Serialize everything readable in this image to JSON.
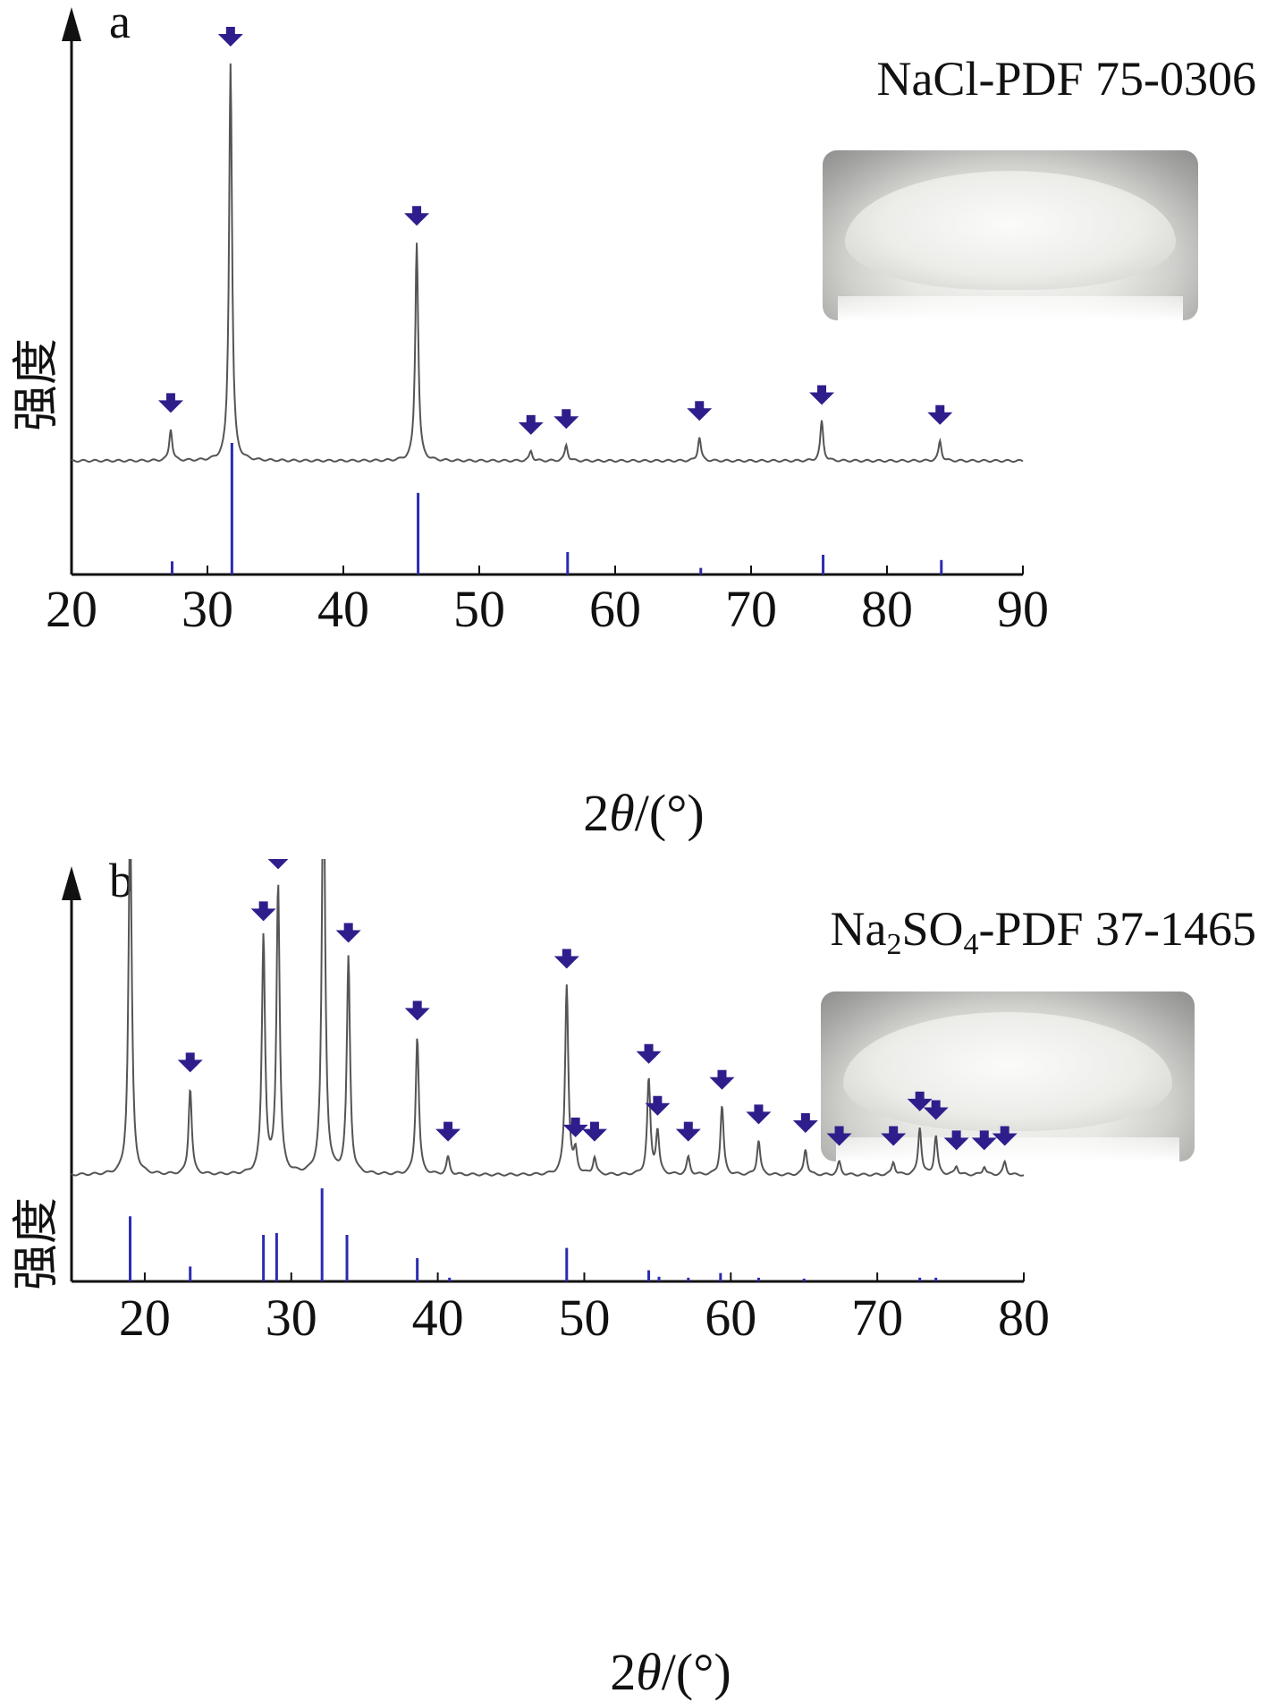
{
  "figure": {
    "panel_a_letter": "a",
    "panel_b_letter": "b",
    "y_axis_label": "强度",
    "x_axis_label_prefix": "2",
    "x_axis_label_theta": "θ",
    "x_axis_label_suffix": "/(°)"
  },
  "colors": {
    "pattern": "#555555",
    "reference": "#2b2bb0",
    "marker": "#2e1e8c",
    "axis": "#111111"
  },
  "chart_data": [
    {
      "type": "line",
      "panel": "a",
      "pdf_label": "NaCl-PDF 75-0306",
      "xlabel": "2θ/(°)",
      "ylabel": "强度",
      "xlim": [
        20,
        90
      ],
      "xticks": [
        20,
        30,
        40,
        50,
        60,
        70,
        80,
        90
      ],
      "xtick_labels": [
        "20",
        "30",
        "40",
        "50",
        "60",
        "70",
        "80",
        "90"
      ],
      "peaks": [
        {
          "x": 27.3,
          "y": 8
        },
        {
          "x": 31.7,
          "y": 100
        },
        {
          "x": 45.4,
          "y": 55
        },
        {
          "x": 53.8,
          "y": 2.5
        },
        {
          "x": 56.4,
          "y": 4
        },
        {
          "x": 66.2,
          "y": 6
        },
        {
          "x": 75.2,
          "y": 10
        },
        {
          "x": 83.9,
          "y": 5
        }
      ],
      "reference_lines": [
        {
          "x": 27.4,
          "y": 10
        },
        {
          "x": 31.8,
          "y": 100
        },
        {
          "x": 45.5,
          "y": 62
        },
        {
          "x": 56.5,
          "y": 17
        },
        {
          "x": 66.3,
          "y": 5
        },
        {
          "x": 75.3,
          "y": 15
        },
        {
          "x": 84.0,
          "y": 11
        }
      ]
    },
    {
      "type": "line",
      "panel": "b",
      "pdf_label": "Na2SO4-PDF 37-1465",
      "xlabel": "2θ/(°)",
      "ylabel": "强度",
      "xlim": [
        15,
        80
      ],
      "xticks": [
        20,
        30,
        40,
        50,
        60,
        70,
        80
      ],
      "xtick_labels": [
        "20",
        "30",
        "40",
        "50",
        "60",
        "70",
        "80"
      ],
      "peaks": [
        {
          "x": 19.0,
          "y": 85
        },
        {
          "x": 23.1,
          "y": 20
        },
        {
          "x": 28.1,
          "y": 55
        },
        {
          "x": 29.1,
          "y": 67
        },
        {
          "x": 32.2,
          "y": 100
        },
        {
          "x": 33.9,
          "y": 50
        },
        {
          "x": 38.6,
          "y": 32
        },
        {
          "x": 40.7,
          "y": 4
        },
        {
          "x": 48.8,
          "y": 44
        },
        {
          "x": 49.4,
          "y": 5
        },
        {
          "x": 50.7,
          "y": 4
        },
        {
          "x": 54.4,
          "y": 22
        },
        {
          "x": 55.0,
          "y": 10
        },
        {
          "x": 57.1,
          "y": 4
        },
        {
          "x": 59.4,
          "y": 16
        },
        {
          "x": 61.9,
          "y": 8
        },
        {
          "x": 65.1,
          "y": 6
        },
        {
          "x": 67.4,
          "y": 3
        },
        {
          "x": 71.1,
          "y": 3
        },
        {
          "x": 72.9,
          "y": 11
        },
        {
          "x": 74.0,
          "y": 9
        },
        {
          "x": 75.4,
          "y": 2
        },
        {
          "x": 77.3,
          "y": 2
        },
        {
          "x": 78.7,
          "y": 3
        }
      ],
      "reference_lines": [
        {
          "x": 19.0,
          "y": 70
        },
        {
          "x": 23.1,
          "y": 16
        },
        {
          "x": 28.1,
          "y": 50
        },
        {
          "x": 29.0,
          "y": 52
        },
        {
          "x": 32.1,
          "y": 100
        },
        {
          "x": 33.8,
          "y": 50
        },
        {
          "x": 38.6,
          "y": 25
        },
        {
          "x": 40.8,
          "y": 4
        },
        {
          "x": 48.8,
          "y": 36
        },
        {
          "x": 54.4,
          "y": 12
        },
        {
          "x": 55.1,
          "y": 5
        },
        {
          "x": 57.1,
          "y": 4
        },
        {
          "x": 59.3,
          "y": 9
        },
        {
          "x": 61.9,
          "y": 4
        },
        {
          "x": 65.0,
          "y": 3
        },
        {
          "x": 72.9,
          "y": 4
        },
        {
          "x": 74.0,
          "y": 4
        }
      ]
    }
  ]
}
